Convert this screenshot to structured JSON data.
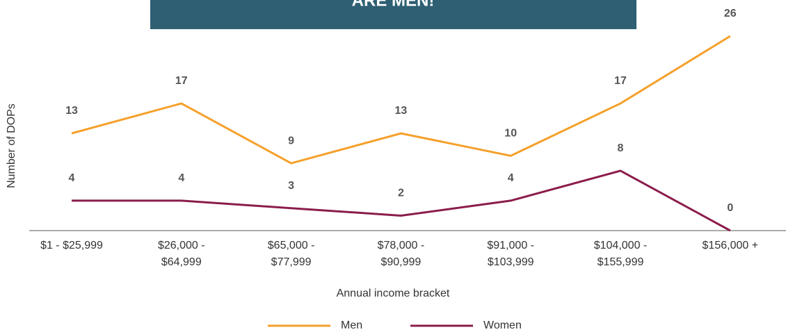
{
  "chart_data": {
    "type": "line",
    "title": "ARE MEN!",
    "x_label": "Annual income bracket",
    "y_label": "Number of DOPs",
    "categories": [
      "$1 - $25,999",
      "$26,000 - $64,999",
      "$65,000 - $77,999",
      "$78,000 - $90,999",
      "$91,000 - $103,999",
      "$104,000 - $155,999",
      "$156,000 +"
    ],
    "series": [
      {
        "name": "Men",
        "color": "#f5a02a",
        "values": [
          13,
          17,
          9,
          13,
          10,
          17,
          26
        ]
      },
      {
        "name": "Women",
        "color": "#8b1c4c",
        "values": [
          4,
          4,
          3,
          2,
          4,
          8,
          0
        ]
      }
    ],
    "ylim": [
      0,
      26
    ]
  }
}
